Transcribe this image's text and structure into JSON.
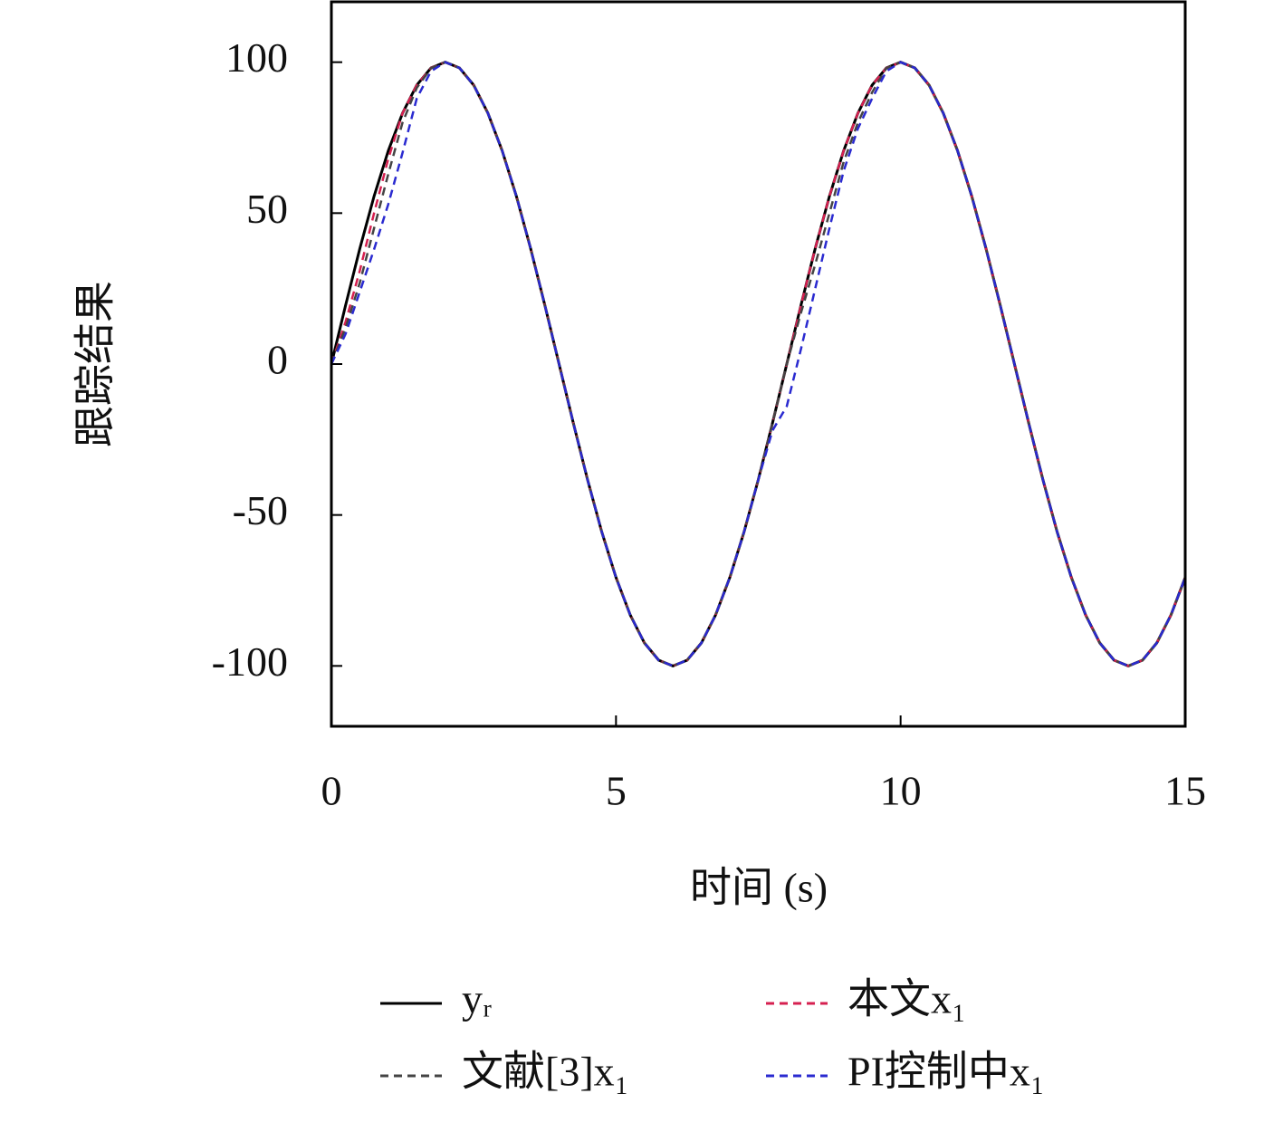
{
  "chart_data": {
    "type": "line",
    "xlabel": "时间 (s)",
    "ylabel": "跟踪结果",
    "x": [
      0,
      0.25,
      0.5,
      0.75,
      1,
      1.25,
      1.5,
      1.75,
      2,
      2.25,
      2.5,
      2.75,
      3,
      3.25,
      3.5,
      3.75,
      4,
      4.25,
      4.5,
      4.75,
      5,
      5.25,
      5.5,
      5.75,
      6,
      6.25,
      6.5,
      6.75,
      7,
      7.25,
      7.5,
      7.75,
      8,
      8.25,
      8.5,
      8.75,
      9,
      9.25,
      9.5,
      9.75,
      10,
      10.25,
      10.5,
      10.75,
      11,
      11.25,
      11.5,
      11.75,
      12,
      12.25,
      12.5,
      12.75,
      13,
      13.25,
      13.5,
      13.75,
      14,
      14.25,
      14.5,
      14.75,
      15
    ],
    "series": [
      {
        "name": "yᵣ",
        "color": "#000000",
        "dashed": false,
        "values": [
          0,
          19.5,
          38.3,
          55.6,
          70.7,
          83.1,
          92.4,
          98.1,
          100,
          98.1,
          92.4,
          83.1,
          70.7,
          55.6,
          38.3,
          19.5,
          0,
          -19.5,
          -38.3,
          -55.6,
          -70.7,
          -83.1,
          -92.4,
          -98.1,
          -100,
          -98.1,
          -92.4,
          -83.1,
          -70.7,
          -55.6,
          -38.3,
          -19.5,
          0,
          19.5,
          38.3,
          55.6,
          70.7,
          83.1,
          92.4,
          98.1,
          100,
          98.1,
          92.4,
          83.1,
          70.7,
          55.6,
          38.3,
          19.5,
          0,
          -19.5,
          -38.3,
          -55.6,
          -70.7,
          -83.1,
          -92.4,
          -98.1,
          -100,
          -98.1,
          -92.4,
          -83.1,
          -70.7
        ]
      },
      {
        "name": "本文x₁",
        "color": "#d62050",
        "dashed": true,
        "values": [
          0,
          14,
          31,
          50,
          68,
          83.1,
          92.4,
          98.1,
          100,
          98.1,
          92.4,
          83.1,
          70.7,
          55.6,
          38.3,
          19.5,
          0,
          -19.5,
          -38.3,
          -55.6,
          -70.7,
          -83.1,
          -92.4,
          -98.1,
          -100,
          -98.1,
          -92.4,
          -83.1,
          -70.7,
          -55.6,
          -38.3,
          -19.5,
          0,
          19.5,
          38.3,
          55.6,
          70.7,
          83.1,
          92.4,
          98.1,
          100,
          98.1,
          92.4,
          83.1,
          70.7,
          55.6,
          38.3,
          19.5,
          0,
          -19.5,
          -38.3,
          -55.6,
          -70.7,
          -83.1,
          -92.4,
          -98.1,
          -100,
          -98.1,
          -92.4,
          -83.1,
          -70.7
        ]
      },
      {
        "name": "文献[3]x₁",
        "color": "#444444",
        "dashed": true,
        "values": [
          0,
          12,
          27,
          45,
          63,
          80,
          91.5,
          98,
          100,
          98.1,
          92.4,
          83.1,
          70.7,
          55.6,
          38.3,
          19.5,
          0,
          -19.5,
          -38.3,
          -55.6,
          -70.7,
          -83.1,
          -92.4,
          -98.1,
          -100,
          -98.1,
          -92.4,
          -83.1,
          -70.7,
          -55.6,
          -38.3,
          -19.5,
          0,
          17,
          33,
          50,
          67,
          80,
          90,
          98,
          100,
          98.1,
          92.4,
          83.1,
          70.7,
          55.6,
          38.3,
          19.5,
          0,
          -19.5,
          -38.3,
          -55.6,
          -70.7,
          -83.1,
          -92.4,
          -98.1,
          -100,
          -98.1,
          -92.4,
          -83.1,
          -70.7
        ]
      },
      {
        "name": "PI控制中x₁",
        "color": "#2a2ad0",
        "dashed": true,
        "values": [
          0,
          10,
          24,
          38,
          53,
          70,
          88,
          97,
          100,
          98.1,
          92.4,
          83.1,
          70.7,
          55.6,
          38.3,
          19.5,
          0,
          -19.5,
          -38.3,
          -55.6,
          -70.7,
          -83.1,
          -92.4,
          -98.1,
          -100,
          -98.1,
          -92.4,
          -83.1,
          -70.7,
          -55.6,
          -38.3,
          -22,
          -14,
          5,
          25,
          45,
          64,
          78,
          88,
          97,
          100,
          98.1,
          92.4,
          83.1,
          70.7,
          55.6,
          38.3,
          19.5,
          0,
          -19.5,
          -38.3,
          -55.6,
          -70.7,
          -83.1,
          -92.4,
          -98.1,
          -100,
          -98.1,
          -92.4,
          -83.1,
          -70.7
        ]
      }
    ],
    "xlim": [
      0,
      15
    ],
    "xticks": [
      0,
      5,
      10,
      15
    ],
    "ylim": [
      -120,
      120
    ],
    "yticks": [
      -100,
      -50,
      0,
      50,
      100
    ],
    "grid": false
  }
}
